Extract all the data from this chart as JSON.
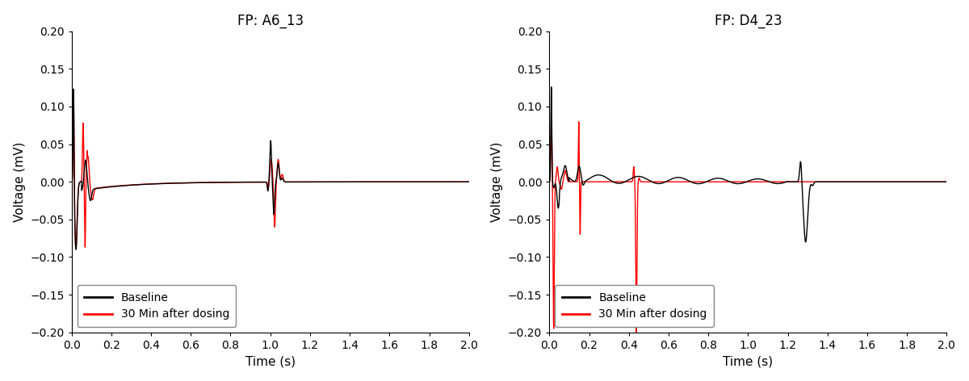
{
  "plot1_title": "FP: A6_13",
  "plot2_title": "FP: D4_23",
  "xlabel": "Time (s)",
  "ylabel": "Voltage (mV)",
  "xlim": [
    0,
    2
  ],
  "ylim": [
    -0.2,
    0.2
  ],
  "xticks": [
    0,
    0.2,
    0.4,
    0.6,
    0.8,
    1.0,
    1.2,
    1.4,
    1.6,
    1.8,
    2.0
  ],
  "yticks": [
    -0.2,
    -0.15,
    -0.1,
    -0.05,
    0,
    0.05,
    0.1,
    0.15,
    0.2
  ],
  "legend_labels": [
    "Baseline",
    "30 Min after dosing"
  ],
  "baseline_color": "#000000",
  "dosing_color": "#ff0000",
  "background_color": "#ffffff",
  "title_fontsize": 12,
  "axis_fontsize": 11,
  "tick_fontsize": 10,
  "legend_fontsize": 10,
  "line_width": 1.0
}
